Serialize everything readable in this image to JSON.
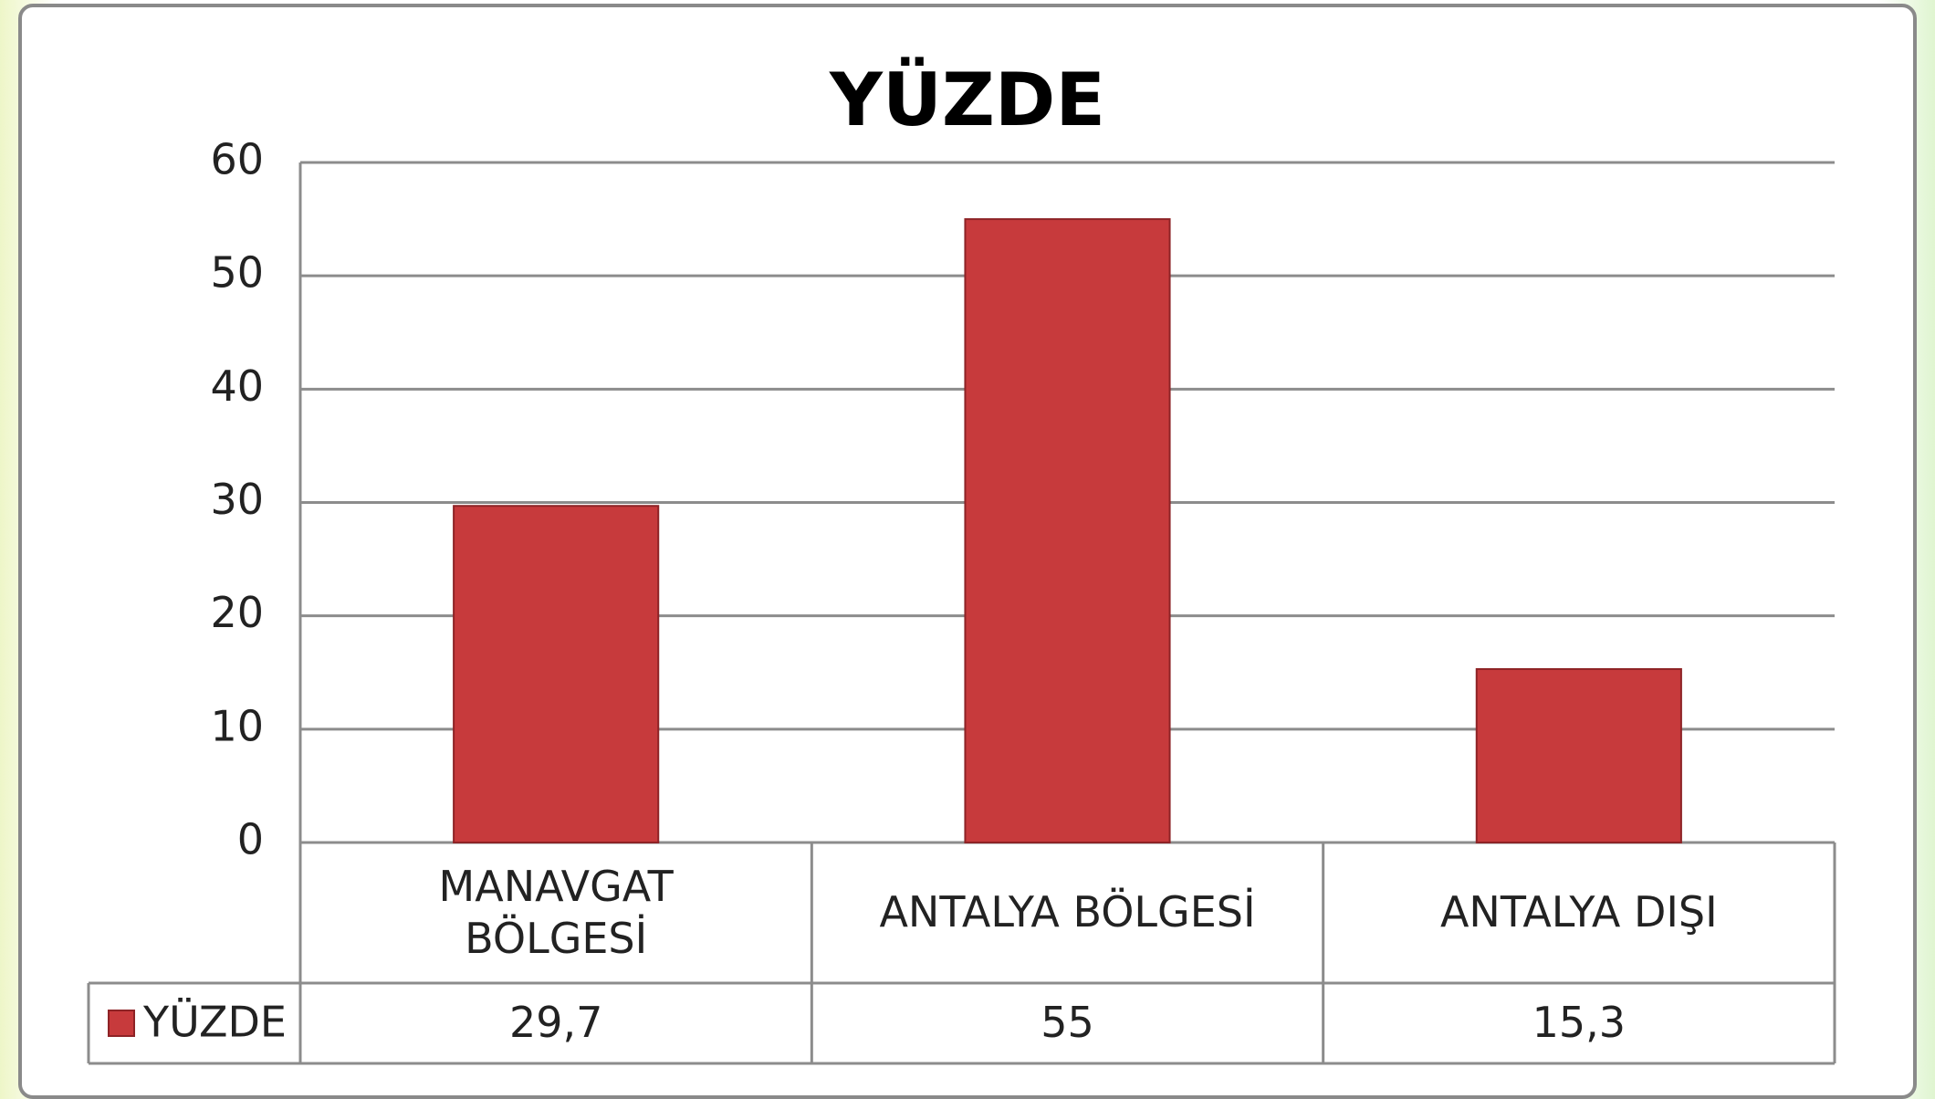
{
  "chart_data": {
    "type": "bar",
    "title": "YÜZDE",
    "categories": [
      "MANAVGAT BÖLGESİ",
      "ANTALYA BÖLGESİ",
      "ANTALYA DIŞI"
    ],
    "series": [
      {
        "name": "YÜZDE",
        "color": "#c73a3c",
        "values": [
          29.7,
          55,
          15.3
        ],
        "value_labels": [
          "29,7",
          "55",
          "15,3"
        ]
      }
    ],
    "ylim": [
      0,
      60
    ],
    "yticks": [
      0,
      10,
      20,
      30,
      40,
      50,
      60
    ],
    "grid": true
  }
}
